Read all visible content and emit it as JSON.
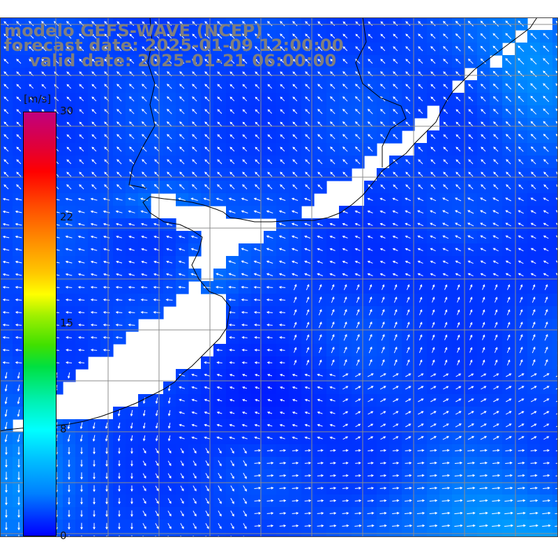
{
  "title": {
    "line1": "modelo GEFS-WAVE (NCEP)",
    "line2": "forecast date: 2025-01-09 12:00:00",
    "line3": "valid date: 2025-01-21 06:00:00"
  },
  "colorbar": {
    "units": "[m/s]",
    "min": 0,
    "max": 30,
    "ticks": [
      "30",
      "22",
      "15",
      "8",
      "0"
    ],
    "tick_values": [
      30,
      22,
      15,
      8,
      0
    ]
  },
  "map": {
    "land_color": "#ffffff",
    "grid_color": "#8c8c8c",
    "coast_color": "#000000",
    "arrow_color": "#ffffff",
    "calm_color": "#0033f0",
    "mid_color": "#0090ff",
    "fast_color": "#00f0e0"
  }
}
